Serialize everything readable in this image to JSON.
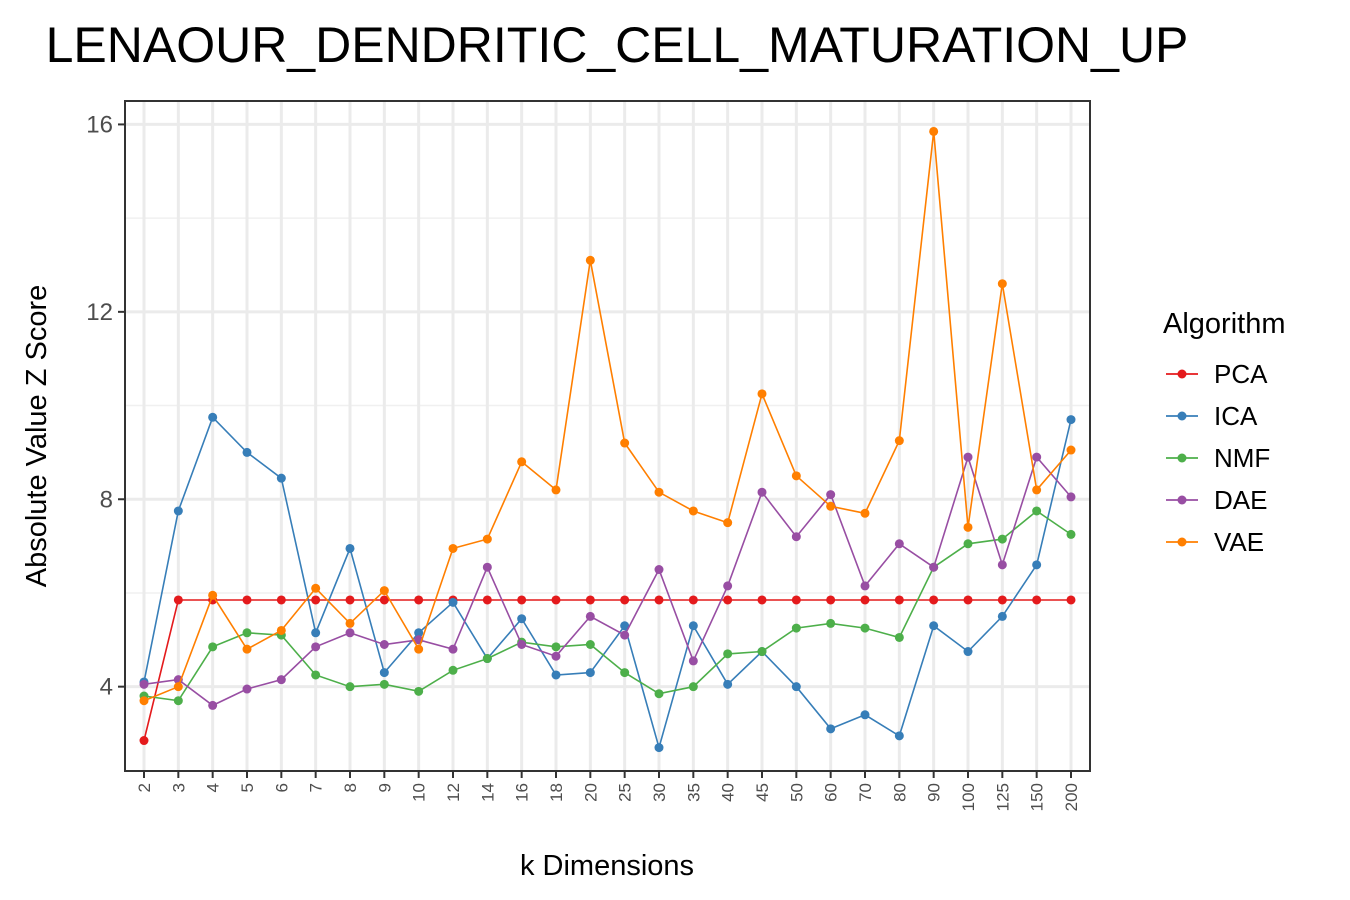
{
  "chart_data": {
    "type": "line",
    "title": "LENAOUR_DENDRITIC_CELL_MATURATION_UP",
    "xlabel": "k Dimensions",
    "ylabel": "Absolute Value Z Score",
    "categories": [
      "2",
      "3",
      "4",
      "5",
      "6",
      "7",
      "8",
      "9",
      "10",
      "12",
      "14",
      "16",
      "18",
      "20",
      "25",
      "30",
      "35",
      "40",
      "45",
      "50",
      "60",
      "70",
      "80",
      "90",
      "100",
      "125",
      "150",
      "200"
    ],
    "ylim": [
      2.2,
      16.5
    ],
    "yticks": [
      4,
      8,
      12,
      16
    ],
    "grid": true,
    "legend": {
      "title": "Algorithm",
      "placement": "right"
    },
    "series": [
      {
        "name": "PCA",
        "color": "#e41a1c",
        "values": [
          2.85,
          5.85,
          5.85,
          5.85,
          5.85,
          5.85,
          5.85,
          5.85,
          5.85,
          5.85,
          5.85,
          5.85,
          5.85,
          5.85,
          5.85,
          5.85,
          5.85,
          5.85,
          5.85,
          5.85,
          5.85,
          5.85,
          5.85,
          5.85,
          5.85,
          5.85,
          5.85,
          5.85
        ]
      },
      {
        "name": "ICA",
        "color": "#377eb8",
        "values": [
          4.1,
          7.75,
          9.75,
          9.0,
          8.45,
          5.15,
          6.95,
          4.3,
          5.15,
          5.8,
          4.6,
          5.45,
          4.25,
          4.3,
          5.3,
          2.7,
          5.3,
          4.05,
          4.75,
          4.0,
          3.1,
          3.4,
          2.95,
          5.3,
          4.75,
          5.5,
          6.6,
          9.7
        ]
      },
      {
        "name": "NMF",
        "color": "#4daf4a",
        "values": [
          3.8,
          3.7,
          4.85,
          5.15,
          5.1,
          4.25,
          4.0,
          4.05,
          3.9,
          4.35,
          4.6,
          4.95,
          4.85,
          4.9,
          4.3,
          3.85,
          4.0,
          4.7,
          4.75,
          5.25,
          5.35,
          5.25,
          5.05,
          6.55,
          7.05,
          7.15,
          7.75,
          7.25
        ]
      },
      {
        "name": "DAE",
        "color": "#984ea3",
        "values": [
          4.05,
          4.15,
          3.6,
          3.95,
          4.15,
          4.85,
          5.15,
          4.9,
          5.0,
          4.8,
          6.55,
          4.9,
          4.65,
          5.5,
          5.1,
          6.5,
          4.55,
          6.15,
          8.15,
          7.2,
          8.1,
          6.15,
          7.05,
          6.55,
          8.9,
          6.6,
          8.9,
          8.05
        ]
      },
      {
        "name": "VAE",
        "color": "#ff7f00",
        "values": [
          3.7,
          4.0,
          5.95,
          4.8,
          5.2,
          6.1,
          5.35,
          6.05,
          4.8,
          6.95,
          7.15,
          8.8,
          8.2,
          13.1,
          9.2,
          8.15,
          7.75,
          7.5,
          10.25,
          8.5,
          7.85,
          7.7,
          9.25,
          15.85,
          7.4,
          12.6,
          8.2,
          9.05
        ]
      }
    ]
  }
}
